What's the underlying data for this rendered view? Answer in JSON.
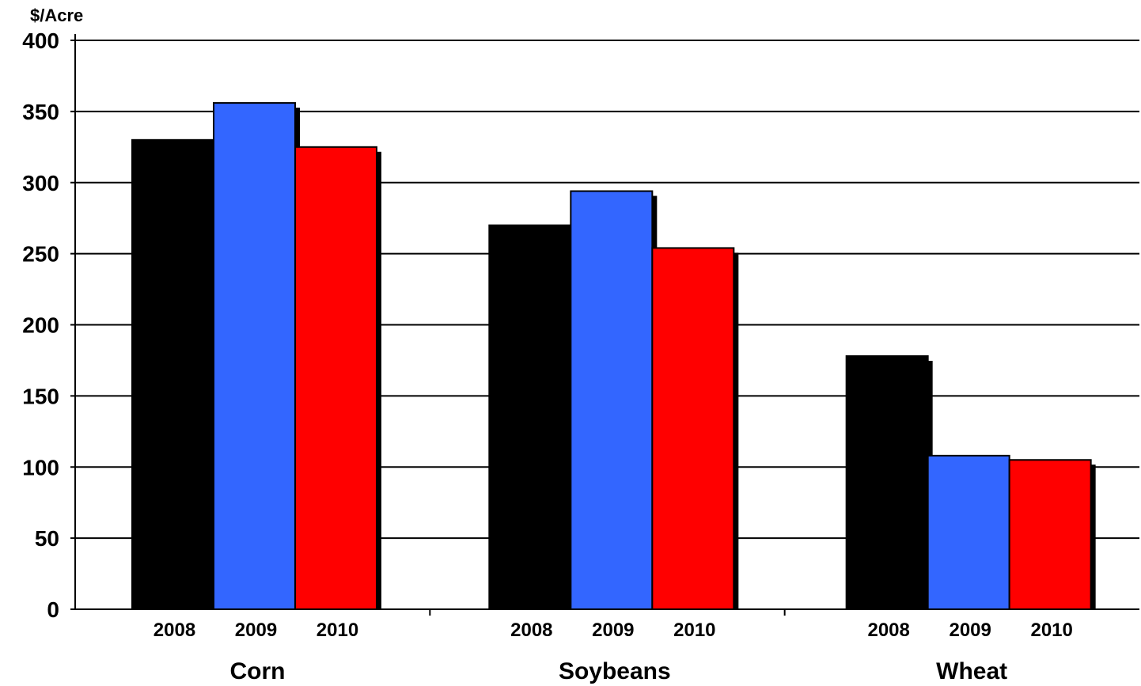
{
  "chart_data": {
    "type": "bar",
    "ylabel": "$/Acre",
    "ylim": [
      0,
      400
    ],
    "yticks": [
      "0",
      "50",
      "100",
      "150",
      "200",
      "250",
      "300",
      "350",
      "400"
    ],
    "grid": true,
    "groups": [
      {
        "name": "Corn",
        "bars": [
          {
            "label": "2008",
            "value": 330,
            "color": "#000000"
          },
          {
            "label": "2009",
            "value": 356,
            "color": "#3366FF"
          },
          {
            "label": "2010",
            "value": 325,
            "color": "#FF0000"
          }
        ]
      },
      {
        "name": "Soybeans",
        "bars": [
          {
            "label": "2008",
            "value": 270,
            "color": "#000000"
          },
          {
            "label": "2009",
            "value": 294,
            "color": "#3366FF"
          },
          {
            "label": "2010",
            "value": 254,
            "color": "#FF0000"
          }
        ]
      },
      {
        "name": "Wheat",
        "bars": [
          {
            "label": "2008",
            "value": 178,
            "color": "#000000"
          },
          {
            "label": "2009",
            "value": 108,
            "color": "#3366FF"
          },
          {
            "label": "2010",
            "value": 105,
            "color": "#FF0000"
          }
        ]
      }
    ]
  }
}
